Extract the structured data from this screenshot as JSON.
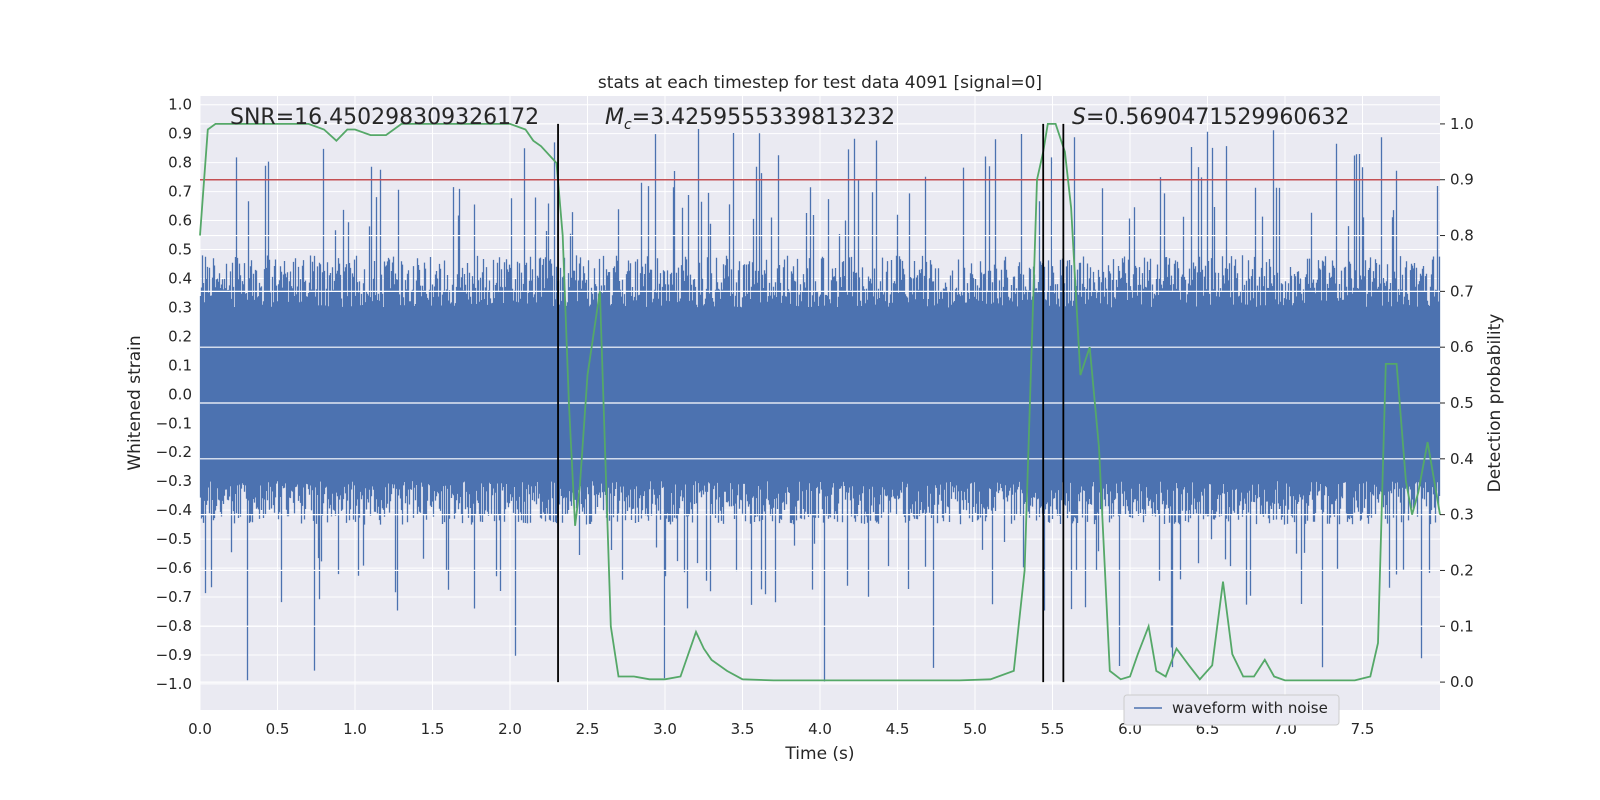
{
  "chart_data": {
    "type": "line",
    "title": "stats at each timestep for test data 4091 [signal=0]",
    "xlabel": "Time (s)",
    "ylabel_left": "Whitened strain",
    "ylabel_right": "Detection probability",
    "xlim": [
      0.0,
      8.0
    ],
    "ylim_left": [
      -1.09,
      1.03
    ],
    "ylim_right": [
      -0.05,
      1.05
    ],
    "x_ticks": [
      0.0,
      0.5,
      1.0,
      1.5,
      2.0,
      2.5,
      3.0,
      3.5,
      4.0,
      4.5,
      5.0,
      5.5,
      6.0,
      6.5,
      7.0,
      7.5
    ],
    "x_tick_labels": [
      "0.0",
      "0.5",
      "1.0",
      "1.5",
      "2.0",
      "2.5",
      "3.0",
      "3.5",
      "4.0",
      "4.5",
      "5.0",
      "5.5",
      "6.0",
      "6.5",
      "7.0",
      "7.5"
    ],
    "y_left_ticks": [
      1.0,
      0.9,
      0.8,
      0.7,
      0.6,
      0.5,
      0.4,
      0.3,
      0.2,
      0.1,
      0.0,
      -0.1,
      -0.2,
      -0.3,
      -0.4,
      -0.5,
      -0.6,
      -0.7,
      -0.8,
      -0.9,
      -1.0
    ],
    "y_left_tick_labels": [
      "1.0",
      "0.9",
      "0.8",
      "0.7",
      "0.6",
      "0.5",
      "0.4",
      "0.3",
      "0.2",
      "0.1",
      "0.0",
      "−0.1",
      "−0.2",
      "−0.3",
      "−0.4",
      "−0.5",
      "−0.6",
      "−0.7",
      "−0.8",
      "−0.9",
      "−1.0"
    ],
    "y_right_ticks": [
      1.0,
      0.9,
      0.8,
      0.7,
      0.6,
      0.5,
      0.4,
      0.3,
      0.2,
      0.1,
      0.0
    ],
    "y_right_tick_labels": [
      "1.0",
      "0.9",
      "0.8",
      "0.7",
      "0.6",
      "0.5",
      "0.4",
      "0.3",
      "0.2",
      "0.1",
      "0.0"
    ],
    "grid": true,
    "legend": {
      "placement": "lower-right",
      "entries": [
        "waveform with noise"
      ]
    },
    "annotations": {
      "snr": "SNR=16.450298309326172",
      "mc_symbol": "M",
      "mc_subscript": "c",
      "mc_value": "=3.4259555339813232",
      "s_symbol": "S",
      "s_value": "=0.5690471529960632"
    },
    "threshold": {
      "value": 0.9,
      "axis": "right",
      "color": "#c44e52"
    },
    "vertical_markers": [
      2.31,
      5.44,
      5.57
    ],
    "series": [
      {
        "name": "waveform with noise",
        "axis": "left",
        "color": "#4c72b0",
        "sample_rate": 4096,
        "duration": 8.0,
        "envelope": {
          "typical_range": [
            -0.42,
            0.45
          ],
          "peak_max": 0.92,
          "peak_min": -1.0
        },
        "note": "dense noise trace"
      },
      {
        "axis": "right",
        "color": "#55a868",
        "x": [
          0.0,
          0.05,
          0.1,
          0.2,
          0.3,
          0.5,
          0.7,
          0.8,
          0.88,
          0.95,
          1.0,
          1.1,
          1.2,
          1.3,
          1.4,
          1.5,
          1.6,
          1.8,
          2.0,
          2.1,
          2.15,
          2.2,
          2.3,
          2.34,
          2.38,
          2.42,
          2.45,
          2.5,
          2.58,
          2.65,
          2.7,
          2.8,
          2.9,
          3.0,
          3.1,
          3.2,
          3.25,
          3.3,
          3.4,
          3.5,
          3.7,
          3.9,
          4.2,
          4.6,
          4.9,
          5.1,
          5.25,
          5.32,
          5.4,
          5.44,
          5.47,
          5.52,
          5.58,
          5.62,
          5.68,
          5.74,
          5.8,
          5.87,
          5.94,
          6.0,
          6.05,
          6.12,
          6.17,
          6.23,
          6.3,
          6.38,
          6.45,
          6.53,
          6.6,
          6.66,
          6.73,
          6.8,
          6.87,
          6.93,
          7.0,
          7.2,
          7.45,
          7.55,
          7.6,
          7.65,
          7.72,
          7.78,
          7.82,
          7.86,
          7.92,
          8.0
        ],
        "y": [
          0.8,
          0.99,
          1.0,
          1.0,
          1.0,
          1.0,
          1.0,
          0.99,
          0.97,
          0.99,
          0.99,
          0.98,
          0.98,
          1.0,
          1.0,
          1.0,
          1.0,
          1.0,
          1.0,
          0.99,
          0.97,
          0.96,
          0.93,
          0.8,
          0.5,
          0.28,
          0.35,
          0.55,
          0.7,
          0.1,
          0.01,
          0.01,
          0.005,
          0.005,
          0.01,
          0.09,
          0.06,
          0.04,
          0.02,
          0.005,
          0.003,
          0.003,
          0.003,
          0.003,
          0.003,
          0.005,
          0.02,
          0.2,
          0.9,
          0.95,
          1.0,
          1.0,
          0.95,
          0.85,
          0.55,
          0.6,
          0.42,
          0.02,
          0.005,
          0.01,
          0.05,
          0.1,
          0.02,
          0.01,
          0.06,
          0.03,
          0.005,
          0.03,
          0.18,
          0.05,
          0.01,
          0.01,
          0.04,
          0.01,
          0.003,
          0.003,
          0.003,
          0.01,
          0.07,
          0.57,
          0.57,
          0.36,
          0.3,
          0.34,
          0.43,
          0.3
        ]
      }
    ],
    "colors": {
      "axes_bg": "#eaeaf2",
      "grid": "#ffffff",
      "text": "#262626",
      "marker_line": "#000000"
    }
  }
}
